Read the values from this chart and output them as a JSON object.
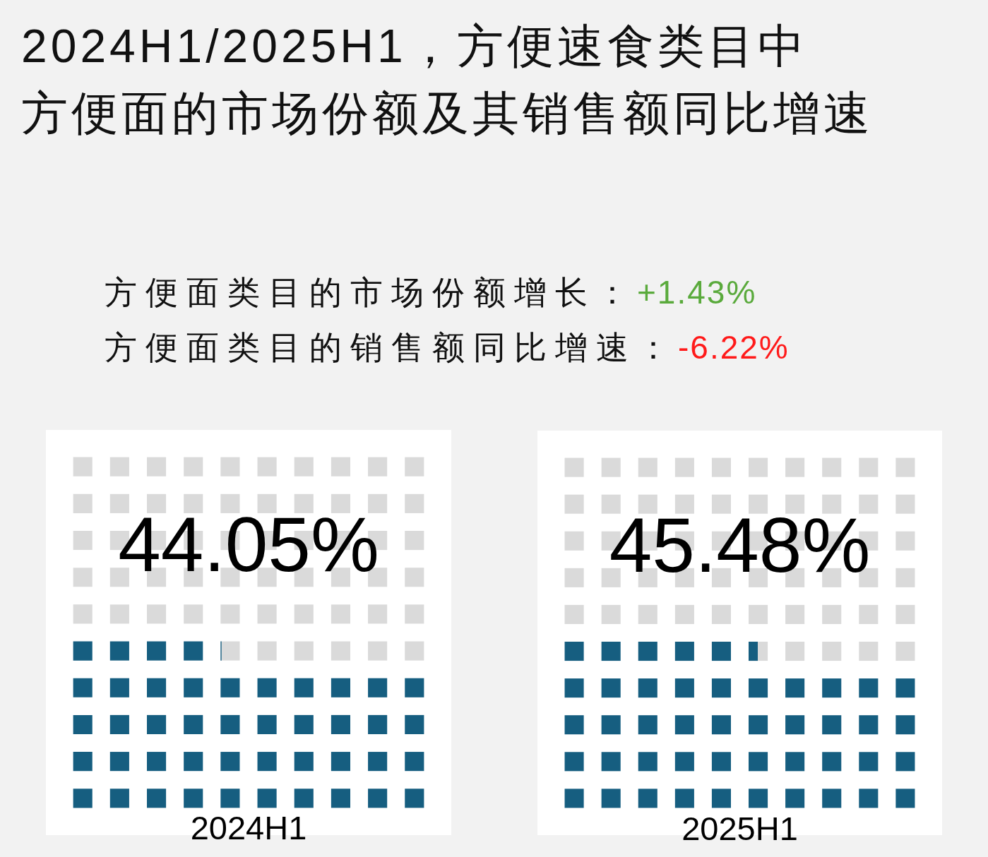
{
  "chart_data": {
    "type": "other",
    "title": "2024H1/2025H1，方便速食类目中方便面的市场份额及其销售额同比增速",
    "annotations": [
      "方便面类目的市场份额增长：+1.43%",
      "方便面类目的销售额同比增速：-6.22%"
    ],
    "categories": [
      "2024H1",
      "2025H1"
    ],
    "values": [
      44.05,
      45.48
    ],
    "value_labels": [
      "44.05%",
      "45.48%"
    ],
    "color": "#165e80"
  }
}
